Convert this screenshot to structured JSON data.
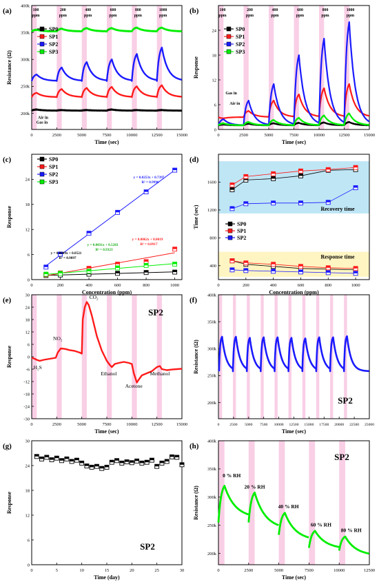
{
  "figure": {
    "panels": [
      "(a)",
      "(b)",
      "(c)",
      "(d)",
      "(e)",
      "(f)",
      "(g)",
      "(h)"
    ]
  },
  "colors": {
    "SP0": "#000000",
    "SP1": "#ff1a1a",
    "SP2": "#1a1aff",
    "SP3": "#00ee00",
    "band": "#f9cfe6",
    "recovery_region": "#bfe6f5",
    "response_region": "#fff5c2"
  },
  "chart_data": [
    {
      "panel": "(a)",
      "type": "line",
      "xlabel": "Time (sec)",
      "ylabel": "Resistance (Ω)",
      "xlim": [
        0,
        15000
      ],
      "xticks": [
        0,
        2500,
        5000,
        7500,
        10000,
        12500,
        15000
      ],
      "ylim": [
        170,
        400
      ],
      "yticks": [
        {
          "v": 200,
          "label": "200k"
        },
        {
          "v": 250,
          "label": "250k"
        },
        {
          "v": 300,
          "label": "300k"
        },
        {
          "v": 350,
          "label": "350k"
        },
        {
          "v": 400,
          "label": "400k"
        }
      ],
      "gas_pulses": [
        {
          "label": "100\nppm",
          "start": 0,
          "end": 500
        },
        {
          "label": "200\nppm",
          "start": 2500,
          "end": 3000
        },
        {
          "label": "400\nppm",
          "start": 5000,
          "end": 5500
        },
        {
          "label": "600\nppm",
          "start": 7500,
          "end": 8000
        },
        {
          "label": "800\nppm",
          "start": 10000,
          "end": 10500
        },
        {
          "label": "1000\nppm",
          "start": 12500,
          "end": 13000
        }
      ],
      "annotations": [
        {
          "text": "Air in",
          "x": 200,
          "y": 190
        },
        {
          "text": "Gas in",
          "x": 50,
          "y": 181
        }
      ],
      "legend": "top-left",
      "series": [
        {
          "name": "SP0",
          "baseline": 205,
          "peaks": [
            207,
            206,
            206,
            207,
            206,
            206
          ]
        },
        {
          "name": "SP1",
          "baseline": 230,
          "peaks": [
            238,
            245,
            247,
            249,
            250,
            252
          ]
        },
        {
          "name": "SP2",
          "baseline": 260,
          "peaks": [
            272,
            285,
            295,
            300,
            310,
            322
          ]
        },
        {
          "name": "SP3",
          "baseline": 352,
          "peaks": [
            355,
            357,
            358,
            358,
            359,
            359
          ]
        }
      ]
    },
    {
      "panel": "(b)",
      "type": "line",
      "xlabel": "Time (sec)",
      "ylabel": "Response",
      "xlim": [
        0,
        15000
      ],
      "xticks": [
        0,
        2500,
        5000,
        7500,
        10000,
        12500,
        15000
      ],
      "ylim": [
        0,
        30
      ],
      "yticks": [
        0,
        6,
        12,
        18,
        24
      ],
      "gas_pulses": [
        {
          "label": "100\nppm",
          "start": 0,
          "end": 500
        },
        {
          "label": "200\nppm",
          "start": 2500,
          "end": 3000
        },
        {
          "label": "400\nppm",
          "start": 5000,
          "end": 5500
        },
        {
          "label": "600\nppm",
          "start": 7500,
          "end": 8000
        },
        {
          "label": "800\nppm",
          "start": 10000,
          "end": 10500
        },
        {
          "label": "1000\nppm",
          "start": 12500,
          "end": 13000
        }
      ],
      "annotations": [
        {
          "text": "Gas in",
          "x": 300,
          "y": 8.5
        },
        {
          "text": "Air in",
          "x": 700,
          "y": 6
        }
      ],
      "legend": "top-left",
      "series": [
        {
          "name": "SP0",
          "baseline": 1,
          "peaks": [
            1.2,
            1.4,
            1.5,
            1.6,
            1.7,
            1.8
          ]
        },
        {
          "name": "SP1",
          "baseline": 3,
          "peaks": [
            2.7,
            4.5,
            7,
            8.5,
            10,
            11
          ]
        },
        {
          "name": "SP2",
          "baseline": 1,
          "peaks": [
            2.5,
            7,
            11,
            18,
            22,
            26
          ]
        },
        {
          "name": "SP3",
          "baseline": 1,
          "peaks": [
            1.5,
            1.8,
            2.3,
            2.8,
            3.4,
            3.9
          ]
        }
      ]
    },
    {
      "panel": "(c)",
      "type": "scatter",
      "xlabel": "Concentration (ppm)",
      "ylabel": "Response",
      "xlim": [
        0,
        1050
      ],
      "xticks": [
        0,
        200,
        400,
        600,
        800,
        1000
      ],
      "ylim": [
        0,
        30
      ],
      "yticks": [
        0,
        6,
        12,
        18,
        24
      ],
      "legend": "top-left",
      "x": [
        100,
        200,
        400,
        600,
        800,
        1000
      ],
      "series": [
        {
          "name": "SP0",
          "values": [
            1.0,
            1.1,
            1.3,
            1.5,
            1.7,
            1.8
          ],
          "fit": "y = 0.0009x + 0.8521",
          "r2": "R² = 0.9897"
        },
        {
          "name": "SP1",
          "values": [
            1.2,
            1.6,
            2.7,
            3.7,
            4.3,
            7.3
          ],
          "fit": "y = 0.0062x + 0.0019",
          "r2": "R² = 0.8917"
        },
        {
          "name": "SP2",
          "values": [
            3.0,
            6.1,
            11.1,
            16.1,
            21.0,
            26.2
          ],
          "fit": "y = 0.0253x + 0.7397",
          "r2": "R² = 0.9996"
        },
        {
          "name": "SP3",
          "values": [
            1.3,
            1.5,
            2.0,
            2.8,
            3.4,
            3.7
          ],
          "fit": "y = 0.0031x + 0.5283",
          "r2": "R² = 0.9323"
        }
      ]
    },
    {
      "panel": "(d)",
      "type": "line",
      "xlabel": "Concentration (ppm)",
      "ylabel": "Time (sec)",
      "xlim": [
        0,
        1100
      ],
      "xticks": [
        0,
        200,
        400,
        600,
        800,
        1000
      ],
      "ylim": [
        200,
        2000
      ],
      "yticks": [
        400,
        800,
        1200,
        1600
      ],
      "region_labels": [
        "Recovery time",
        "Response time"
      ],
      "legend": "center-left",
      "x": [
        100,
        200,
        400,
        600,
        800,
        1000
      ],
      "series": [
        {
          "name": "SP0",
          "recovery": [
            1490,
            1630,
            1650,
            1690,
            1770,
            1780
          ],
          "response": [
            470,
            420,
            390,
            360,
            350,
            340
          ]
        },
        {
          "name": "SP1",
          "recovery": [
            1560,
            1680,
            1720,
            1760,
            1780,
            1810
          ],
          "response": [
            470,
            440,
            420,
            390,
            370,
            360
          ]
        },
        {
          "name": "SP2",
          "recovery": [
            1220,
            1290,
            1300,
            1300,
            1310,
            1520
          ],
          "response": [
            340,
            330,
            320,
            310,
            300,
            290
          ]
        }
      ]
    },
    {
      "panel": "(e)",
      "type": "line",
      "title": "SP2",
      "xlabel": "Time (sec)",
      "ylabel": "Response",
      "xlim": [
        0,
        15000
      ],
      "xticks": [
        0,
        2500,
        5000,
        7500,
        10000,
        12500,
        15000
      ],
      "ylim": [
        -30,
        30
      ],
      "yticks": [
        -30,
        -24,
        -18,
        -12,
        -6,
        0,
        6,
        12,
        18,
        24,
        30
      ],
      "gas_labels": [
        {
          "text": "H₂S",
          "x": 600,
          "y": -6
        },
        {
          "text": "NO₂",
          "x": 2600,
          "y": 8
        },
        {
          "text": "CO₂",
          "x": 6200,
          "y": 28
        },
        {
          "text": "Ethanol",
          "x": 7700,
          "y": -9
        },
        {
          "text": "Acetone",
          "x": 10200,
          "y": -15
        },
        {
          "text": "Methanol",
          "x": 12800,
          "y": -9
        }
      ],
      "points": [
        [
          0,
          -0.5
        ],
        [
          300,
          -1
        ],
        [
          500,
          -1.5
        ],
        [
          800,
          -2
        ],
        [
          1200,
          -1.5
        ],
        [
          1800,
          -1
        ],
        [
          2400,
          -0.5
        ],
        [
          2600,
          2
        ],
        [
          2900,
          4
        ],
        [
          3300,
          3.8
        ],
        [
          3800,
          3.2
        ],
        [
          4300,
          2.8
        ],
        [
          4800,
          2
        ],
        [
          5000,
          1.5
        ],
        [
          5100,
          18
        ],
        [
          5300,
          24
        ],
        [
          5500,
          26.5
        ],
        [
          5700,
          25
        ],
        [
          6000,
          20
        ],
        [
          6500,
          10
        ],
        [
          7000,
          3
        ],
        [
          7500,
          -2
        ],
        [
          7800,
          -4
        ],
        [
          8000,
          -5
        ],
        [
          8300,
          -3.5
        ],
        [
          8700,
          -3
        ],
        [
          9200,
          -2.5
        ],
        [
          9700,
          -3
        ],
        [
          10000,
          -3.5
        ],
        [
          10200,
          -8
        ],
        [
          10500,
          -12.5
        ],
        [
          10700,
          -11
        ],
        [
          11000,
          -9
        ],
        [
          11500,
          -8
        ],
        [
          12000,
          -7
        ],
        [
          12500,
          -5
        ],
        [
          12800,
          -4.5
        ],
        [
          13000,
          -6
        ],
        [
          13500,
          -6.5
        ],
        [
          14000,
          -6.2
        ],
        [
          14500,
          -6
        ],
        [
          15000,
          -5.8
        ]
      ]
    },
    {
      "panel": "(f)",
      "type": "line",
      "title": "SP2",
      "xlabel": "Time (sec)",
      "ylabel": "Resistance (Ω)",
      "xlim": [
        0,
        25000
      ],
      "xticks": [
        0,
        2500,
        5000,
        7500,
        10000,
        12500,
        15000,
        17500,
        20000,
        22500,
        25000
      ],
      "ylim": [
        170,
        400
      ],
      "yticks": [
        {
          "v": 200,
          "label": "200k"
        },
        {
          "v": 250,
          "label": "250k"
        },
        {
          "v": 300,
          "label": "300k"
        },
        {
          "v": 350,
          "label": "350k"
        },
        {
          "v": 400,
          "label": "400k"
        }
      ],
      "cycles": 10,
      "baseline": 258,
      "peaks": [
        322,
        322,
        320,
        321,
        321,
        320,
        319,
        321,
        321,
        323
      ]
    },
    {
      "panel": "(g)",
      "type": "scatter",
      "title": "SP2",
      "xlabel": "Time (day)",
      "ylabel": "Response",
      "xlim": [
        0,
        30
      ],
      "xticks": [
        0,
        5,
        10,
        15,
        20,
        25,
        30
      ],
      "ylim": [
        0,
        30
      ],
      "yticks": [
        0,
        6,
        12,
        18,
        24,
        30
      ],
      "x": [
        1,
        2,
        3,
        4,
        5,
        6,
        7,
        8,
        9,
        10,
        11,
        12,
        13,
        14,
        15,
        16,
        17,
        18,
        19,
        20,
        21,
        22,
        23,
        24,
        25,
        26,
        27,
        28,
        29,
        30
      ],
      "values": [
        26.2,
        25.6,
        26.0,
        25.4,
        25.8,
        25.2,
        25.6,
        25.0,
        25.3,
        24.6,
        23.9,
        23.6,
        23.8,
        23.3,
        23.6,
        24.8,
        25.2,
        24.6,
        24.9,
        24.7,
        25.1,
        24.6,
        24.8,
        25.3,
        23.8,
        24.6,
        25.0,
        26.1,
        26.0,
        24.2
      ]
    },
    {
      "panel": "(h)",
      "type": "line",
      "title": "SP2",
      "xlabel": "Time (sec)",
      "ylabel": "Resistance (Ω)",
      "xlim": [
        0,
        12500
      ],
      "xticks": [
        0,
        2500,
        5000,
        7500,
        10000,
        12500
      ],
      "ylim": [
        180,
        400
      ],
      "yticks": [
        {
          "v": 200,
          "label": "200k"
        },
        {
          "v": 250,
          "label": "250k"
        },
        {
          "v": 300,
          "label": "300k"
        },
        {
          "v": 350,
          "label": "350k"
        },
        {
          "v": 400,
          "label": "400k"
        }
      ],
      "humidity_labels": [
        {
          "text": "0 % RH",
          "x": 1100,
          "y": 335
        },
        {
          "text": "20 % RH",
          "x": 3000,
          "y": 315
        },
        {
          "text": "40 % RH",
          "x": 5800,
          "y": 280
        },
        {
          "text": "60 % RH",
          "x": 8500,
          "y": 248
        },
        {
          "text": "80 % RH",
          "x": 11000,
          "y": 238
        }
      ],
      "pulses": [
        {
          "start": 0,
          "end": 500,
          "base": 255,
          "peak": 320,
          "end_value": 265
        },
        {
          "start": 2500,
          "end": 3000,
          "base": 255,
          "peak": 308,
          "end_value": 245
        },
        {
          "start": 5000,
          "end": 5500,
          "base": 233,
          "peak": 272,
          "end_value": 225
        },
        {
          "start": 7500,
          "end": 8000,
          "base": 210,
          "peak": 240,
          "end_value": 210
        },
        {
          "start": 10000,
          "end": 10500,
          "base": 205,
          "peak": 230,
          "end_value": 198
        }
      ]
    }
  ]
}
